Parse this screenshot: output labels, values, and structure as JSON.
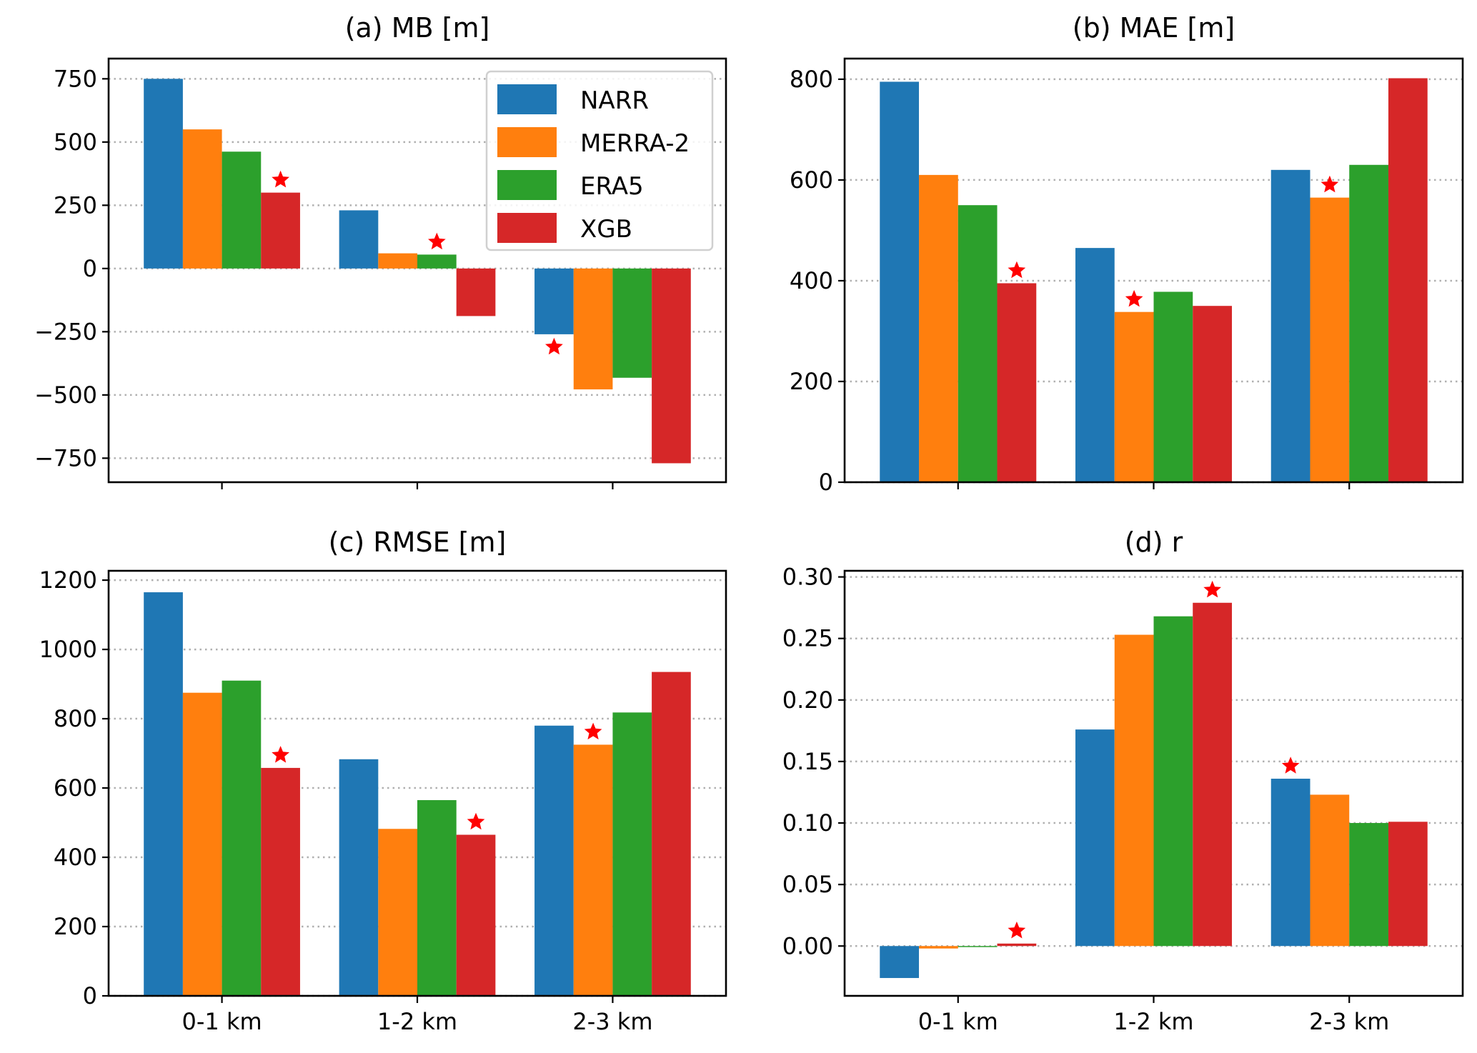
{
  "chart_data": {
    "type": "bar",
    "categories": [
      "0-1 km",
      "1-2 km",
      "2-3 km"
    ],
    "legend": {
      "placement": "top-right of panel (a)",
      "entries": [
        "NARR",
        "MERRA-2",
        "ERA5",
        "XGB"
      ]
    },
    "colors": {
      "NARR": "#1f77b4",
      "MERRA-2": "#ff7f0e",
      "ERA5": "#2ca02c",
      "XGB": "#d62728",
      "star": "#ff0000"
    },
    "grid": "horizontal dotted",
    "panels": [
      {
        "title": "(a) MB [m]",
        "ylim": [
          -845,
          830
        ],
        "yticks": [
          -750,
          -500,
          -250,
          0,
          250,
          500,
          750
        ],
        "ytick_labels": [
          "−750",
          "−500",
          "−250",
          "0",
          "250",
          "500",
          "750"
        ],
        "show_xtick_labels": false,
        "series": [
          {
            "name": "NARR",
            "values": [
              750,
              230,
              -260
            ]
          },
          {
            "name": "MERRA-2",
            "values": [
              550,
              60,
              -478
            ]
          },
          {
            "name": "ERA5",
            "values": [
              462,
              55,
              -432
            ]
          },
          {
            "name": "XGB",
            "values": [
              300,
              -188,
              -770
            ]
          }
        ],
        "best_marker": [
          "XGB",
          "ERA5",
          "NARR"
        ]
      },
      {
        "title": "(b) MAE [m]",
        "ylim": [
          0,
          841
        ],
        "yticks": [
          0,
          200,
          400,
          600,
          800
        ],
        "ytick_labels": [
          "0",
          "200",
          "400",
          "600",
          "800"
        ],
        "show_xtick_labels": false,
        "series": [
          {
            "name": "NARR",
            "values": [
              795,
              465,
              620
            ]
          },
          {
            "name": "MERRA-2",
            "values": [
              610,
              338,
              565
            ]
          },
          {
            "name": "ERA5",
            "values": [
              550,
              378,
              630
            ]
          },
          {
            "name": "XGB",
            "values": [
              395,
              350,
              802
            ]
          }
        ],
        "best_marker": [
          "XGB",
          "MERRA-2",
          "MERRA-2"
        ]
      },
      {
        "title": "(c) RMSE [m]",
        "ylim": [
          0,
          1227
        ],
        "yticks": [
          0,
          200,
          400,
          600,
          800,
          1000,
          1200
        ],
        "ytick_labels": [
          "0",
          "200",
          "400",
          "600",
          "800",
          "1000",
          "1200"
        ],
        "show_xtick_labels": true,
        "series": [
          {
            "name": "NARR",
            "values": [
              1165,
              683,
              780
            ]
          },
          {
            "name": "MERRA-2",
            "values": [
              875,
              482,
              725
            ]
          },
          {
            "name": "ERA5",
            "values": [
              910,
              565,
              818
            ]
          },
          {
            "name": "XGB",
            "values": [
              658,
              465,
              935
            ]
          }
        ],
        "best_marker": [
          "XGB",
          "XGB",
          "MERRA-2"
        ]
      },
      {
        "title": "(d) r",
        "ylim": [
          -0.0405,
          0.305
        ],
        "yticks": [
          0,
          0.05,
          0.1,
          0.15,
          0.2,
          0.25,
          0.3
        ],
        "ytick_labels": [
          "0.00",
          "0.05",
          "0.10",
          "0.15",
          "0.20",
          "0.25",
          "0.30"
        ],
        "show_xtick_labels": true,
        "series": [
          {
            "name": "NARR",
            "values": [
              -0.026,
              0.176,
              0.136
            ]
          },
          {
            "name": "MERRA-2",
            "values": [
              -0.002,
              0.253,
              0.123
            ]
          },
          {
            "name": "ERA5",
            "values": [
              -0.0006,
              0.268,
              0.1
            ]
          },
          {
            "name": "XGB",
            "values": [
              0.002,
              0.279,
              0.101
            ]
          }
        ],
        "best_marker": [
          "XGB",
          "XGB",
          "NARR"
        ]
      }
    ]
  }
}
